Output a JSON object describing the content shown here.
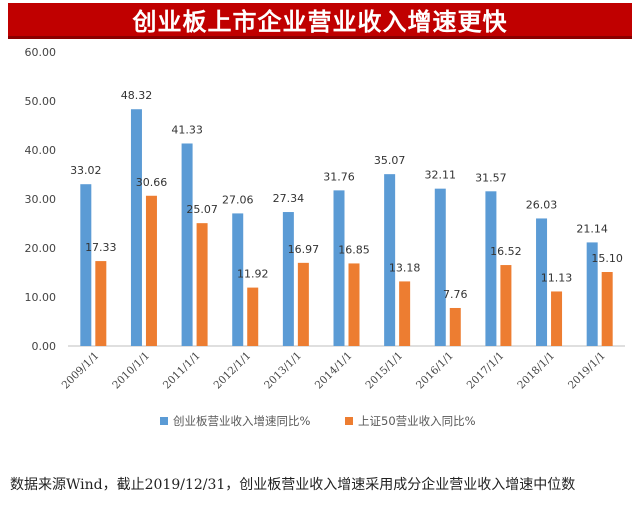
{
  "header": {
    "title": "创业板上市企业营业收入增速更快"
  },
  "chart_data": {
    "type": "bar",
    "categories": [
      "2009/1/1",
      "2010/1/1",
      "2011/1/1",
      "2012/1/1",
      "2013/1/1",
      "2014/1/1",
      "2015/1/1",
      "2016/1/1",
      "2017/1/1",
      "2018/1/1",
      "2019/1/1"
    ],
    "series": [
      {
        "name": "创业板营业收入增速同比%",
        "color": "#5b9bd5",
        "values": [
          33.02,
          48.32,
          41.33,
          27.06,
          27.34,
          31.76,
          35.07,
          32.11,
          31.57,
          26.03,
          21.14
        ],
        "labels": [
          "33.02",
          "48.32",
          "41.33",
          "27.06",
          "27.34",
          "31.76",
          "35.07",
          "32.11",
          "31.57",
          "26.03",
          "21.14"
        ]
      },
      {
        "name": "上证50营业收入同比%",
        "color": "#ed7d31",
        "values": [
          17.33,
          30.66,
          25.07,
          11.92,
          16.97,
          16.85,
          13.18,
          7.76,
          16.52,
          11.13,
          15.1
        ],
        "labels": [
          "17.33",
          "30.66",
          "25.07",
          "11.92",
          "16.97",
          "16.85",
          "13.18",
          "7.76",
          "16.52",
          "11.13",
          "15.10"
        ]
      }
    ],
    "ylim": [
      0,
      60
    ],
    "yticks": [
      "0.00",
      "10.00",
      "20.00",
      "30.00",
      "40.00",
      "50.00",
      "60.00"
    ],
    "grid": false,
    "legend": "bottom"
  },
  "footer": {
    "note": "数据来源Wind，截止2019/12/31，创业板营业收入增速采用成分企业营业收入增速中位数"
  }
}
